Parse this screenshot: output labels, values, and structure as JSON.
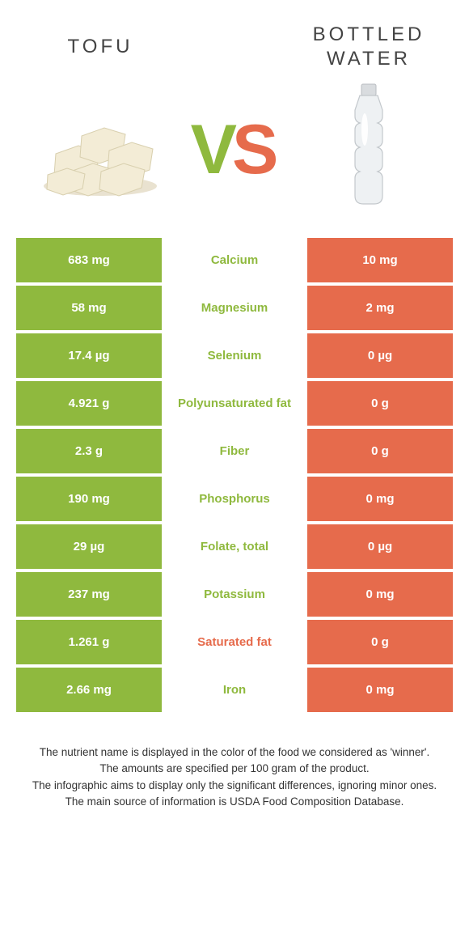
{
  "colors": {
    "left": "#8fb93e",
    "right": "#e66b4c",
    "bg": "#ffffff",
    "text": "#444444"
  },
  "header": {
    "left_title": "TOFU",
    "right_title": "BOTTLED\nWATER",
    "vs_v": "V",
    "vs_s": "S"
  },
  "table": {
    "rows": [
      {
        "left": "683 mg",
        "label": "Calcium",
        "right": "10 mg",
        "winner": "left"
      },
      {
        "left": "58 mg",
        "label": "Magnesium",
        "right": "2 mg",
        "winner": "left"
      },
      {
        "left": "17.4 µg",
        "label": "Selenium",
        "right": "0 µg",
        "winner": "left"
      },
      {
        "left": "4.921 g",
        "label": "Polyunsaturated fat",
        "right": "0 g",
        "winner": "left"
      },
      {
        "left": "2.3 g",
        "label": "Fiber",
        "right": "0 g",
        "winner": "left"
      },
      {
        "left": "190 mg",
        "label": "Phosphorus",
        "right": "0 mg",
        "winner": "left"
      },
      {
        "left": "29 µg",
        "label": "Folate, total",
        "right": "0 µg",
        "winner": "left"
      },
      {
        "left": "237 mg",
        "label": "Potassium",
        "right": "0 mg",
        "winner": "left"
      },
      {
        "left": "1.261 g",
        "label": "Saturated fat",
        "right": "0 g",
        "winner": "right"
      },
      {
        "left": "2.66 mg",
        "label": "Iron",
        "right": "0 mg",
        "winner": "left"
      }
    ]
  },
  "footer": {
    "lines": [
      "The nutrient name is displayed in the color of the food we considered as 'winner'.",
      "The amounts are specified per 100 gram of the product.",
      "The infographic aims to display only the significant differences, ignoring minor ones.",
      "The main source of information is USDA Food Composition Database."
    ]
  }
}
